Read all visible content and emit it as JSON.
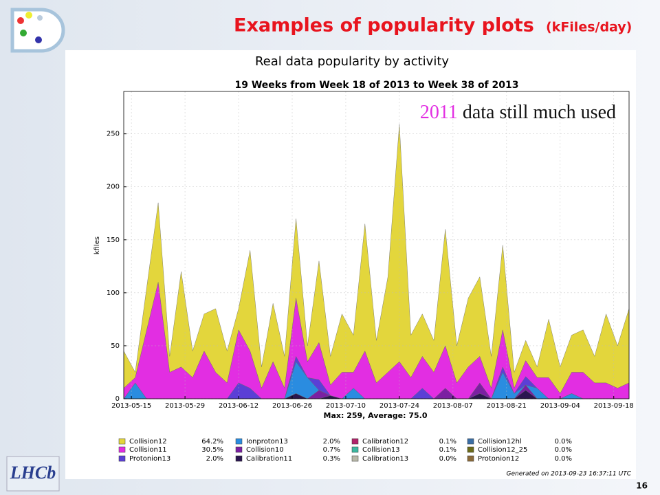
{
  "slide": {
    "title": "Examples of popularity plots",
    "title_unit": "(kFiles/day)",
    "page_number": "16",
    "logo": "LHCb"
  },
  "chart_data": {
    "type": "stacked_area",
    "title": "Real data popularity by activity",
    "subtitle": "19 Weeks from Week 18 of 2013 to Week 38 of 2013",
    "ylabel": "kfiles",
    "footer": "Max: 259, Average: 75.0",
    "generated": "Generated on 2013-09-23 16:37:11 UTC",
    "annotation": {
      "year": "2011",
      "text": "data still much used"
    },
    "xlim": [
      "2013-05-13",
      "2013-09-22"
    ],
    "xticks": [
      "2013-05-15",
      "2013-05-29",
      "2013-06-12",
      "2013-06-26",
      "2013-07-10",
      "2013-07-24",
      "2013-08-07",
      "2013-08-21",
      "2013-09-04",
      "2013-09-18"
    ],
    "ylim": [
      0,
      290
    ],
    "yticks": [
      0,
      50,
      100,
      150,
      200,
      250
    ],
    "grid": true,
    "x": [
      "2013-05-13",
      "2013-05-16",
      "2013-05-19",
      "2013-05-22",
      "2013-05-25",
      "2013-05-28",
      "2013-05-31",
      "2013-06-03",
      "2013-06-06",
      "2013-06-09",
      "2013-06-12",
      "2013-06-15",
      "2013-06-18",
      "2013-06-21",
      "2013-06-24",
      "2013-06-27",
      "2013-06-30",
      "2013-07-03",
      "2013-07-06",
      "2013-07-09",
      "2013-07-12",
      "2013-07-15",
      "2013-07-18",
      "2013-07-21",
      "2013-07-24",
      "2013-07-27",
      "2013-07-30",
      "2013-08-02",
      "2013-08-05",
      "2013-08-08",
      "2013-08-11",
      "2013-08-14",
      "2013-08-17",
      "2013-08-20",
      "2013-08-23",
      "2013-08-26",
      "2013-08-29",
      "2013-09-01",
      "2013-09-04",
      "2013-09-07",
      "2013-09-10",
      "2013-09-13",
      "2013-09-16",
      "2013-09-19",
      "2013-09-22"
    ],
    "series": [
      {
        "name": "Collision12",
        "share": "64.2%",
        "color": "#e3d63c",
        "values": [
          35,
          5,
          40,
          75,
          15,
          90,
          25,
          35,
          60,
          30,
          20,
          95,
          20,
          55,
          30,
          75,
          15,
          77,
          27,
          55,
          35,
          120,
          40,
          90,
          224,
          40,
          40,
          30,
          110,
          35,
          65,
          75,
          30,
          80,
          15,
          19,
          10,
          55,
          25,
          35,
          40,
          25,
          65,
          40,
          70
        ]
      },
      {
        "name": "Collision11",
        "share": "30.5%",
        "color": "#e22ee2",
        "values": [
          10,
          5,
          65,
          110,
          25,
          30,
          20,
          45,
          25,
          15,
          50,
          35,
          10,
          35,
          10,
          55,
          15,
          35,
          10,
          25,
          15,
          45,
          15,
          25,
          35,
          20,
          30,
          25,
          40,
          15,
          30,
          25,
          10,
          35,
          5,
          15,
          10,
          20,
          5,
          20,
          25,
          15,
          15,
          10,
          15
        ]
      },
      {
        "name": "Protonion13",
        "share": "2.0%",
        "color": "#5b3fd6",
        "values": [
          0,
          0,
          0,
          0,
          0,
          0,
          0,
          0,
          0,
          0,
          15,
          10,
          0,
          0,
          0,
          5,
          0,
          10,
          0,
          0,
          0,
          0,
          0,
          0,
          0,
          0,
          10,
          0,
          0,
          0,
          0,
          0,
          0,
          5,
          0,
          8,
          0,
          0,
          0,
          0,
          0,
          0,
          0,
          0,
          0
        ]
      },
      {
        "name": "Ionproton13",
        "share": "2.0%",
        "color": "#2a8ce0",
        "values": [
          0,
          15,
          0,
          0,
          0,
          0,
          0,
          0,
          0,
          0,
          0,
          0,
          0,
          0,
          0,
          30,
          20,
          0,
          0,
          0,
          10,
          0,
          0,
          0,
          0,
          0,
          0,
          0,
          0,
          0,
          0,
          0,
          0,
          25,
          5,
          0,
          10,
          0,
          0,
          5,
          0,
          0,
          0,
          0,
          0
        ]
      },
      {
        "name": "Collision10",
        "share": "0.7%",
        "color": "#7b1fa2",
        "values": [
          0,
          0,
          0,
          0,
          0,
          0,
          0,
          0,
          0,
          0,
          0,
          0,
          0,
          0,
          0,
          0,
          0,
          8,
          0,
          0,
          0,
          0,
          0,
          0,
          0,
          0,
          0,
          0,
          10,
          0,
          0,
          10,
          0,
          0,
          0,
          5,
          0,
          0,
          0,
          0,
          0,
          0,
          0,
          0,
          0
        ]
      },
      {
        "name": "Calibration11",
        "share": "0.3%",
        "color": "#2b1650",
        "values": [
          0,
          0,
          0,
          0,
          0,
          0,
          0,
          0,
          0,
          0,
          0,
          0,
          0,
          0,
          0,
          5,
          0,
          0,
          3,
          0,
          0,
          0,
          0,
          0,
          0,
          0,
          0,
          0,
          0,
          0,
          0,
          5,
          0,
          0,
          0,
          8,
          0,
          0,
          0,
          0,
          0,
          0,
          0,
          0,
          0
        ]
      },
      {
        "name": "Calibration12",
        "share": "0.1%",
        "color": "#b0246a",
        "values": [
          0,
          0,
          0,
          0,
          0,
          0,
          0,
          0,
          0,
          0,
          0,
          0,
          0,
          0,
          0,
          0,
          0,
          0,
          0,
          0,
          0,
          0,
          0,
          0,
          0,
          0,
          0,
          0,
          0,
          0,
          0,
          0,
          0,
          0,
          0,
          0,
          0,
          0,
          0,
          0,
          0,
          0,
          0,
          0,
          0
        ]
      },
      {
        "name": "Collision13",
        "share": "0.1%",
        "color": "#3cb8a0",
        "values": [
          0,
          0,
          0,
          0,
          0,
          0,
          0,
          0,
          0,
          0,
          0,
          0,
          0,
          0,
          0,
          0,
          0,
          0,
          0,
          0,
          0,
          0,
          0,
          0,
          0,
          0,
          0,
          0,
          0,
          0,
          0,
          0,
          0,
          0,
          0,
          0,
          0,
          0,
          0,
          0,
          0,
          0,
          0,
          0,
          0
        ]
      },
      {
        "name": "Calibration13",
        "share": "0.0%",
        "color": "#b8b8a8",
        "values": [
          0,
          0,
          0,
          0,
          0,
          0,
          0,
          0,
          0,
          0,
          0,
          0,
          0,
          0,
          0,
          0,
          0,
          0,
          0,
          0,
          0,
          0,
          0,
          0,
          0,
          0,
          0,
          0,
          0,
          0,
          0,
          0,
          0,
          0,
          0,
          0,
          0,
          0,
          0,
          0,
          0,
          0,
          0,
          0,
          0
        ]
      },
      {
        "name": "Collision12hl",
        "share": "0.0%",
        "color": "#3a6ea5",
        "values": [
          0,
          0,
          0,
          0,
          0,
          0,
          0,
          0,
          0,
          0,
          0,
          0,
          0,
          0,
          0,
          0,
          0,
          0,
          0,
          0,
          0,
          0,
          0,
          0,
          0,
          0,
          0,
          0,
          0,
          0,
          0,
          0,
          0,
          0,
          0,
          0,
          0,
          0,
          0,
          0,
          0,
          0,
          0,
          0,
          0
        ]
      },
      {
        "name": "Collision12_25",
        "share": "0.0%",
        "color": "#6b6b1a",
        "values": [
          0,
          0,
          0,
          0,
          0,
          0,
          0,
          0,
          0,
          0,
          0,
          0,
          0,
          0,
          0,
          0,
          0,
          0,
          0,
          0,
          0,
          0,
          0,
          0,
          0,
          0,
          0,
          0,
          0,
          0,
          0,
          0,
          0,
          0,
          0,
          0,
          0,
          0,
          0,
          0,
          0,
          0,
          0,
          0,
          0
        ]
      },
      {
        "name": "Protonion12",
        "share": "0.0%",
        "color": "#8b6b3a",
        "values": [
          0,
          0,
          0,
          0,
          0,
          0,
          0,
          0,
          0,
          0,
          0,
          0,
          0,
          0,
          0,
          0,
          0,
          0,
          0,
          0,
          0,
          0,
          0,
          0,
          0,
          0,
          0,
          0,
          0,
          0,
          0,
          0,
          0,
          0,
          0,
          0,
          0,
          0,
          0,
          0,
          0,
          0,
          0,
          0,
          0
        ]
      }
    ]
  }
}
